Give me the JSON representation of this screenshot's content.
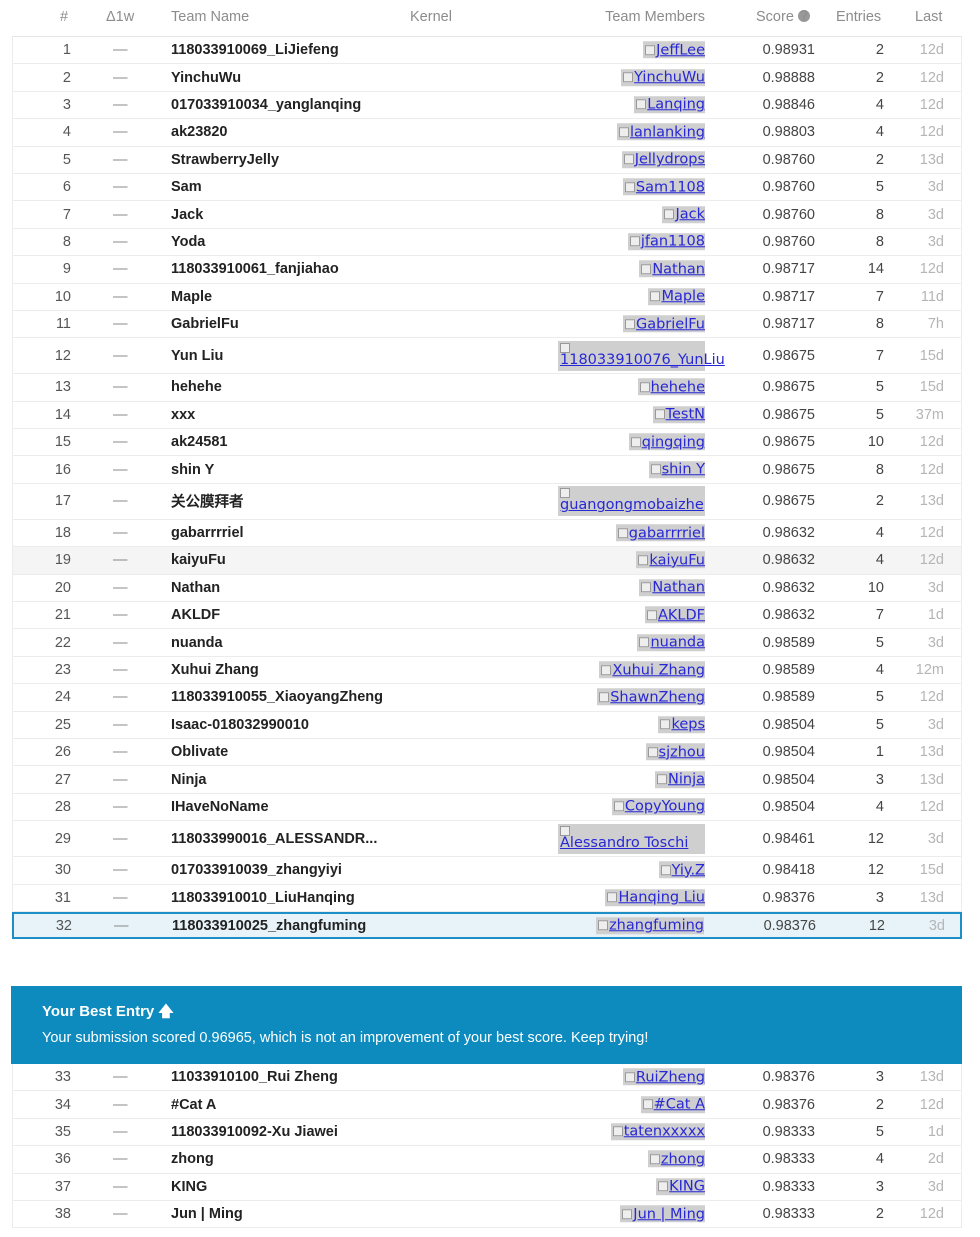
{
  "header": {
    "rank": "#",
    "delta": "Δ1w",
    "team_name": "Team Name",
    "kernel": "Kernel",
    "team_members": "Team Members",
    "score": "Score",
    "entries": "Entries",
    "last": "Last"
  },
  "rows": [
    {
      "rank": "1",
      "delta": "—",
      "team": "118033910069_LiJiefeng",
      "member": "JeffLee",
      "score": "0.98931",
      "entries": "2",
      "last": "12d"
    },
    {
      "rank": "2",
      "delta": "—",
      "team": "YinchuWu",
      "member": "YinchuWu",
      "score": "0.98888",
      "entries": "2",
      "last": "12d"
    },
    {
      "rank": "3",
      "delta": "—",
      "team": "017033910034_yanglanqing",
      "member": "Lanqing",
      "score": "0.98846",
      "entries": "4",
      "last": "12d"
    },
    {
      "rank": "4",
      "delta": "—",
      "team": "ak23820",
      "member": "lanlanking",
      "score": "0.98803",
      "entries": "4",
      "last": "12d"
    },
    {
      "rank": "5",
      "delta": "—",
      "team": "StrawberryJelly",
      "member": "Jellydrops",
      "score": "0.98760",
      "entries": "2",
      "last": "13d"
    },
    {
      "rank": "6",
      "delta": "—",
      "team": "Sam",
      "member": "Sam1108",
      "score": "0.98760",
      "entries": "5",
      "last": "3d"
    },
    {
      "rank": "7",
      "delta": "—",
      "team": "Jack",
      "member": "Jack",
      "score": "0.98760",
      "entries": "8",
      "last": "3d"
    },
    {
      "rank": "8",
      "delta": "—",
      "team": "Yoda",
      "member": "jfan1108",
      "score": "0.98760",
      "entries": "8",
      "last": "3d"
    },
    {
      "rank": "9",
      "delta": "—",
      "team": "118033910061_fanjiahao",
      "member": "Nathan",
      "score": "0.98717",
      "entries": "14",
      "last": "12d"
    },
    {
      "rank": "10",
      "delta": "—",
      "team": "Maple",
      "member": "Maple",
      "score": "0.98717",
      "entries": "7",
      "last": "11d"
    },
    {
      "rank": "11",
      "delta": "—",
      "team": "GabrielFu",
      "member": "GabrielFu",
      "score": "0.98717",
      "entries": "8",
      "last": "7h"
    },
    {
      "rank": "12",
      "delta": "—",
      "team": "Yun Liu",
      "member": "118033910076_YunLiu",
      "score": "0.98675",
      "entries": "7",
      "last": "15d"
    },
    {
      "rank": "13",
      "delta": "—",
      "team": "hehehe",
      "member": "hehehe",
      "score": "0.98675",
      "entries": "5",
      "last": "15d"
    },
    {
      "rank": "14",
      "delta": "—",
      "team": "xxx",
      "member": "TestN",
      "score": "0.98675",
      "entries": "5",
      "last": "37m"
    },
    {
      "rank": "15",
      "delta": "—",
      "team": "ak24581",
      "member": "qingqing",
      "score": "0.98675",
      "entries": "10",
      "last": "12d"
    },
    {
      "rank": "16",
      "delta": "—",
      "team": "shin Y",
      "member": "shin Y",
      "score": "0.98675",
      "entries": "8",
      "last": "12d"
    },
    {
      "rank": "17",
      "delta": "—",
      "team": "关公膜拜者",
      "member": "guangongmobaizhe",
      "score": "0.98675",
      "entries": "2",
      "last": "13d"
    },
    {
      "rank": "18",
      "delta": "—",
      "team": "gabarrrriel",
      "member": "gabarrrriel",
      "score": "0.98632",
      "entries": "4",
      "last": "12d"
    },
    {
      "rank": "19",
      "delta": "—",
      "team": "kaiyuFu",
      "member": "kaiyuFu",
      "score": "0.98632",
      "entries": "4",
      "last": "12d"
    },
    {
      "rank": "20",
      "delta": "—",
      "team": "Nathan",
      "member": "Nathan",
      "score": "0.98632",
      "entries": "10",
      "last": "3d"
    },
    {
      "rank": "21",
      "delta": "—",
      "team": "AKLDF",
      "member": "AKLDF",
      "score": "0.98632",
      "entries": "7",
      "last": "1d"
    },
    {
      "rank": "22",
      "delta": "—",
      "team": "nuanda",
      "member": "nuanda",
      "score": "0.98589",
      "entries": "5",
      "last": "3d"
    },
    {
      "rank": "23",
      "delta": "—",
      "team": "Xuhui Zhang",
      "member": "Xuhui Zhang",
      "score": "0.98589",
      "entries": "4",
      "last": "12m"
    },
    {
      "rank": "24",
      "delta": "—",
      "team": "118033910055_XiaoyangZheng",
      "member": "ShawnZheng",
      "score": "0.98589",
      "entries": "5",
      "last": "12d"
    },
    {
      "rank": "25",
      "delta": "—",
      "team": "Isaac-018032990010",
      "member": "keps",
      "score": "0.98504",
      "entries": "5",
      "last": "3d"
    },
    {
      "rank": "26",
      "delta": "—",
      "team": "Oblivate",
      "member": "sjzhou",
      "score": "0.98504",
      "entries": "1",
      "last": "13d"
    },
    {
      "rank": "27",
      "delta": "—",
      "team": "Ninja",
      "member": "Ninja",
      "score": "0.98504",
      "entries": "3",
      "last": "13d"
    },
    {
      "rank": "28",
      "delta": "—",
      "team": "IHaveNoName",
      "member": "CopyYoung",
      "score": "0.98504",
      "entries": "4",
      "last": "12d"
    },
    {
      "rank": "29",
      "delta": "—",
      "team": "118033990016_ALESSANDR...",
      "member": "Alessandro Toschi",
      "score": "0.98461",
      "entries": "12",
      "last": "3d"
    },
    {
      "rank": "30",
      "delta": "—",
      "team": "017033910039_zhangyiyi",
      "member": "Yiy.Z",
      "score": "0.98418",
      "entries": "12",
      "last": "15d"
    },
    {
      "rank": "31",
      "delta": "—",
      "team": "118033910010_LiuHanqing",
      "member": "Hanqing Liu",
      "score": "0.98376",
      "entries": "3",
      "last": "13d"
    },
    {
      "rank": "32",
      "delta": "—",
      "team": "118033910025_zhangfuming",
      "member": "zhangfuming",
      "score": "0.98376",
      "entries": "12",
      "last": "3d"
    }
  ],
  "banner": {
    "title": "Your Best Entry",
    "arrow": "🡅",
    "message": "Your submission scored 0.96965, which is not an improvement of your best score. Keep trying!"
  },
  "rows_after": [
    {
      "rank": "33",
      "delta": "—",
      "team": "11033910100_Rui Zheng",
      "member": "RuiZheng",
      "score": "0.98376",
      "entries": "3",
      "last": "13d"
    },
    {
      "rank": "34",
      "delta": "—",
      "team": "#Cat A",
      "member": "#Cat A",
      "score": "0.98376",
      "entries": "2",
      "last": "12d"
    },
    {
      "rank": "35",
      "delta": "—",
      "team": "118033910092-Xu Jiawei",
      "member": "tatenxxxxx",
      "score": "0.98333",
      "entries": "5",
      "last": "1d"
    },
    {
      "rank": "36",
      "delta": "—",
      "team": "zhong",
      "member": "zhong",
      "score": "0.98333",
      "entries": "4",
      "last": "2d"
    },
    {
      "rank": "37",
      "delta": "—",
      "team": "KING",
      "member": "KING",
      "score": "0.98333",
      "entries": "3",
      "last": "3d"
    },
    {
      "rank": "38",
      "delta": "—",
      "team": "Jun | Ming",
      "member": "Jun | Ming",
      "score": "0.98333",
      "entries": "2",
      "last": "12d"
    }
  ],
  "colors": {
    "banner_bg": "#0d8bbe",
    "current_row_border": "#1e8ec6",
    "link": "#2727d6"
  }
}
